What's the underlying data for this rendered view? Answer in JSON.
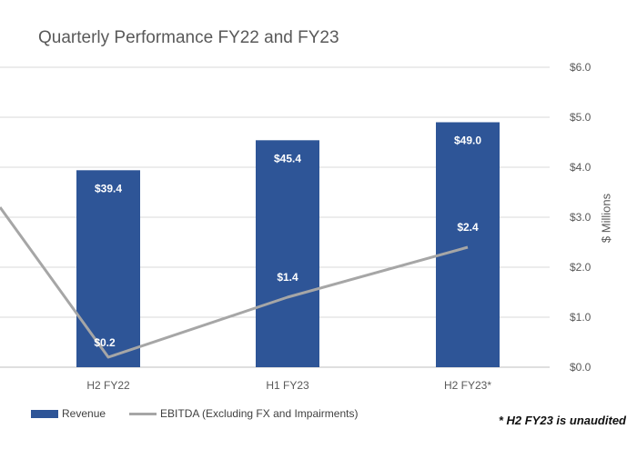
{
  "chart_data": {
    "type": "bar",
    "title": "Quarterly Performance FY22 and FY23",
    "ylabel": "$ Millions",
    "ylim": [
      0,
      6
    ],
    "y_ticks": [
      "$0.0",
      "$1.0",
      "$2.0",
      "$3.0",
      "$4.0",
      "$5.0",
      "$6.0"
    ],
    "categories": [
      "H2 FY22",
      "H1 FY23",
      "H2 FY23*"
    ],
    "series": [
      {
        "name": "Revenue",
        "type": "bar",
        "values": [
          39.4,
          45.4,
          49.0
        ],
        "plotted_as": [
          3.94,
          4.54,
          4.9
        ],
        "labels": [
          "$39.4",
          "$45.4",
          "$49.0"
        ],
        "color": "#2e5597"
      },
      {
        "name": "EBITDA (Excluding FX and Impairments)",
        "type": "line",
        "values": [
          0.2,
          1.4,
          2.4
        ],
        "labels": [
          "$0.2",
          "$1.4",
          "$2.4"
        ],
        "prior_point_value": 3.2,
        "color": "#a6a6a6"
      }
    ],
    "grid": true,
    "legend_position": "bottom-left"
  },
  "footnote": "* H2 FY23 is unaudited"
}
